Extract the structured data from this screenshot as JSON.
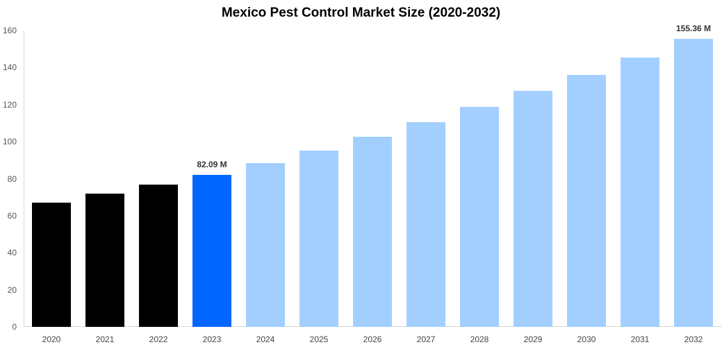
{
  "chart_data": {
    "type": "bar",
    "title": "Mexico Pest Control Market Size (2020-2032)",
    "xlabel": "",
    "ylabel": "",
    "ylim": [
      0,
      160
    ],
    "yticks": [
      0,
      20,
      40,
      60,
      80,
      100,
      120,
      140,
      160
    ],
    "grid": false,
    "legend": null,
    "categories": [
      "2020",
      "2021",
      "2022",
      "2023",
      "2024",
      "2025",
      "2026",
      "2027",
      "2028",
      "2029",
      "2030",
      "2031",
      "2032"
    ],
    "values": [
      67.1,
      71.9,
      76.8,
      82.09,
      88.4,
      95.2,
      102.7,
      110.5,
      118.8,
      127.4,
      136.2,
      145.4,
      155.36
    ],
    "bar_colors": [
      "#000000",
      "#000000",
      "#000000",
      "#0066FF",
      "#A2CFFE",
      "#A2CFFE",
      "#A2CFFE",
      "#A2CFFE",
      "#A2CFFE",
      "#A2CFFE",
      "#A2CFFE",
      "#A2CFFE",
      "#A2CFFE"
    ],
    "annotations": [
      {
        "category": "2023",
        "text": "82.09 M"
      },
      {
        "category": "2032",
        "text": "155.36 M"
      }
    ]
  }
}
